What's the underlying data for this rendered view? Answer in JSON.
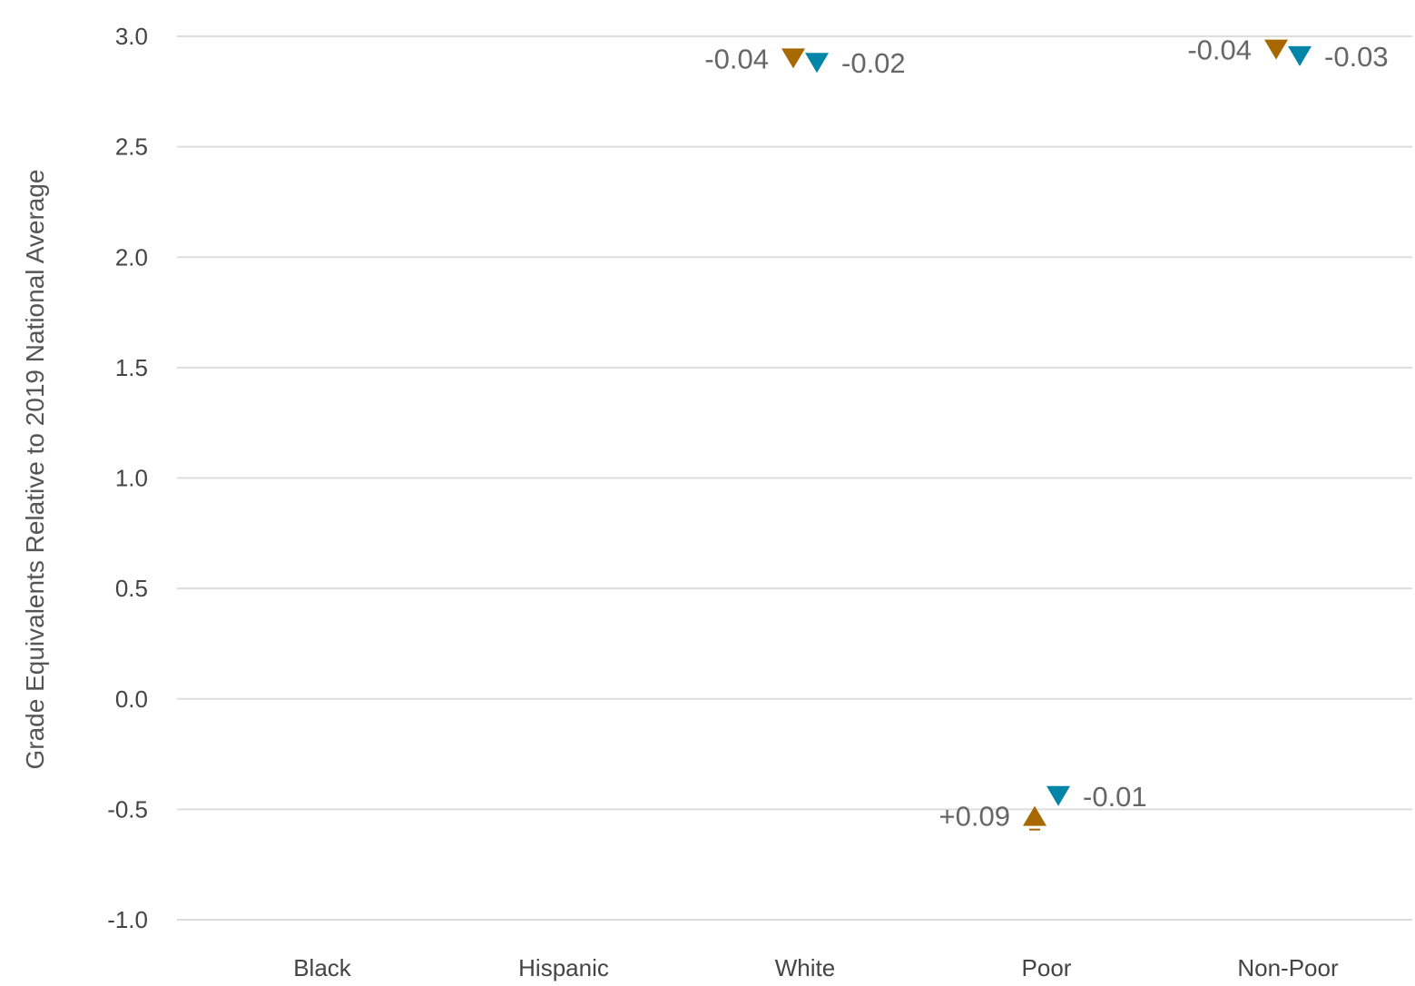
{
  "chart_data": {
    "type": "scatter",
    "ylabel": "Grade Equivalents Relative to 2019 National Average",
    "xlabel": "",
    "ylim": [
      -1.0,
      3.0
    ],
    "yticks": [
      "3.0",
      "2.5",
      "2.0",
      "1.5",
      "1.0",
      "0.5",
      "0.0",
      "-0.5",
      "-1.0"
    ],
    "ytick_values": [
      3.0,
      2.5,
      2.0,
      1.5,
      1.0,
      0.5,
      0.0,
      -0.5,
      -1.0
    ],
    "categories": [
      "Black",
      "Hispanic",
      "White",
      "Poor",
      "Non-Poor"
    ],
    "grid": true,
    "series": [
      {
        "color": "#a86800",
        "markers": [
          {
            "category": "White",
            "y": 2.9,
            "direction": "down",
            "label": "-0.04"
          },
          {
            "category": "Poor",
            "y": -0.53,
            "direction": "up",
            "label": "+0.09"
          },
          {
            "category": "Non-Poor",
            "y": 2.94,
            "direction": "down",
            "label": "-0.04"
          }
        ]
      },
      {
        "color": "#0085a8",
        "markers": [
          {
            "category": "White",
            "y": 2.88,
            "direction": "down",
            "label": "-0.02"
          },
          {
            "category": "Poor",
            "y": -0.44,
            "direction": "down",
            "label": "-0.01"
          },
          {
            "category": "Non-Poor",
            "y": 2.91,
            "direction": "down",
            "label": "-0.03"
          }
        ]
      }
    ]
  }
}
